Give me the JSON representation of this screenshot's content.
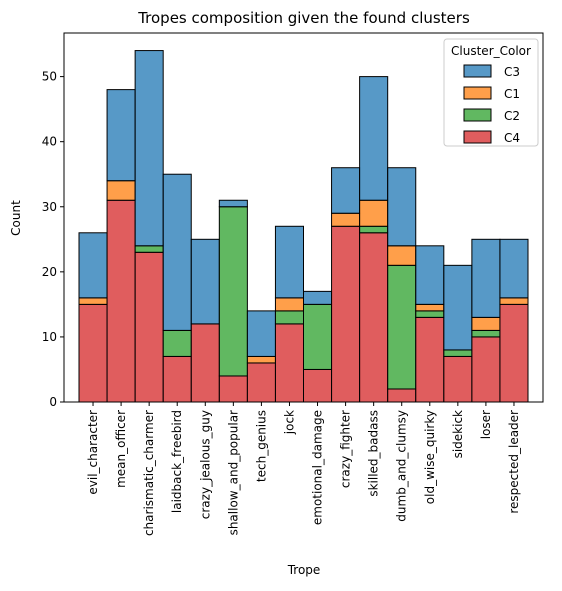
{
  "chart_data": {
    "type": "bar",
    "stacked": true,
    "title": "Tropes composition given the found clusters",
    "xlabel": "Trope",
    "ylabel": "Count",
    "ylim": [
      0,
      56.7
    ],
    "yticks": [
      0,
      10,
      20,
      30,
      40,
      50
    ],
    "categories": [
      "evil_character",
      "mean_officer",
      "charismatic_charmer",
      "laidback_freebird",
      "crazy_jealous_guy",
      "shallow_and_popular",
      "tech_genius",
      "jock",
      "emotional_damage",
      "crazy_fighter",
      "skilled_badass",
      "dumb_and_clumsy",
      "old_wise_quirky",
      "sidekick",
      "loser",
      "respected_leader"
    ],
    "series": [
      {
        "name": "C4",
        "color": "#d62728",
        "values": [
          15,
          31,
          23,
          7,
          12,
          4,
          6,
          12,
          5,
          27,
          26,
          2,
          13,
          7,
          10,
          15
        ]
      },
      {
        "name": "C2",
        "color": "#2ca02c",
        "values": [
          0,
          0,
          1,
          4,
          0,
          26,
          0,
          2,
          10,
          0,
          1,
          19,
          1,
          1,
          1,
          0
        ]
      },
      {
        "name": "C1",
        "color": "#ff7f0e",
        "values": [
          1,
          3,
          0,
          0,
          0,
          0,
          1,
          2,
          0,
          2,
          4,
          3,
          1,
          0,
          2,
          1
        ]
      },
      {
        "name": "C3",
        "color": "#1f77b4",
        "values": [
          10,
          14,
          30,
          24,
          13,
          1,
          7,
          11,
          2,
          7,
          19,
          12,
          9,
          13,
          12,
          9
        ]
      }
    ],
    "legend": {
      "title": "Cluster_Color",
      "order": [
        "C3",
        "C1",
        "C2",
        "C4"
      ],
      "placement": "top-right"
    },
    "grid": false
  }
}
